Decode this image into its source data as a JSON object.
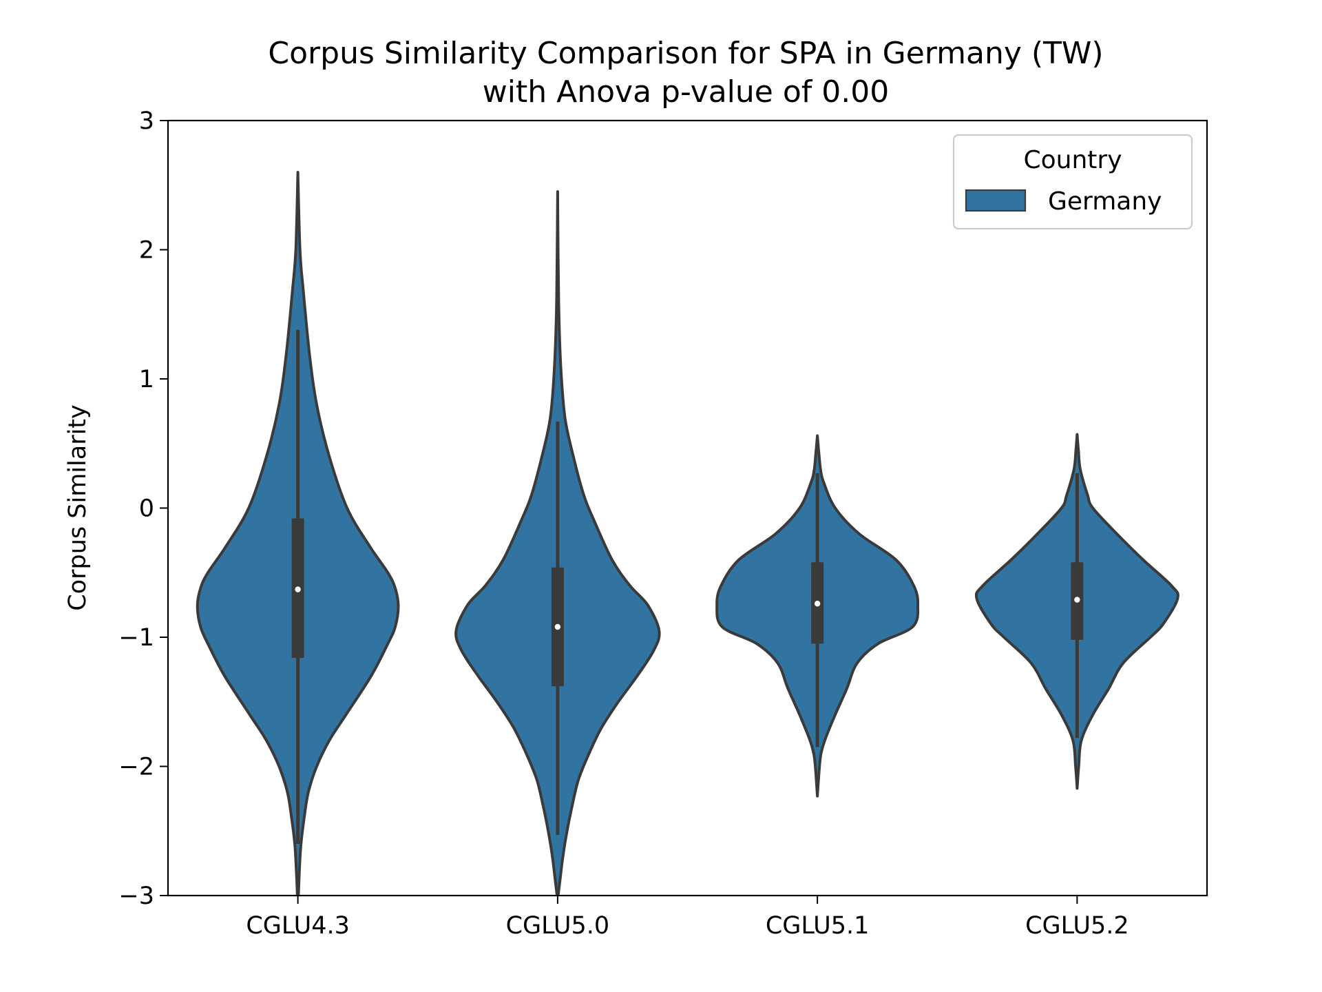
{
  "chart_data": {
    "type": "violin",
    "title_line1": "Corpus Similarity Comparison for SPA in Germany (TW)",
    "title_line2": "with Anova p-value of 0.00",
    "xlabel": "",
    "ylabel": "Corpus Similarity",
    "ylim": [
      -3,
      3
    ],
    "yticks": [
      3,
      2,
      1,
      0,
      -1,
      -2,
      -3
    ],
    "ytick_labels": [
      "3",
      "2",
      "1",
      "0",
      "−1",
      "−2",
      "−3"
    ],
    "categories": [
      "CGLU4.3",
      "CGLU5.0",
      "CGLU5.1",
      "CGLU5.2"
    ],
    "legend": {
      "title": "Country",
      "entries": [
        {
          "label": "Germany",
          "color": "#3274a1"
        }
      ],
      "placement": "upper right"
    },
    "series": [
      {
        "name": "CGLU4.3",
        "range": [
          -3.0,
          2.6
        ],
        "q1": -1.16,
        "median": -0.63,
        "q3": -0.08,
        "whisker": [
          -2.6,
          1.38
        ],
        "density": [
          [
            2.6,
            0.0
          ],
          [
            2.0,
            0.02
          ],
          [
            1.7,
            0.05
          ],
          [
            1.2,
            0.11
          ],
          [
            0.8,
            0.18
          ],
          [
            0.4,
            0.3
          ],
          [
            0.0,
            0.47
          ],
          [
            -0.3,
            0.69
          ],
          [
            -0.5,
            0.86
          ],
          [
            -0.62,
            0.93
          ],
          [
            -0.76,
            0.96
          ],
          [
            -0.92,
            0.93
          ],
          [
            -1.05,
            0.86
          ],
          [
            -1.3,
            0.7
          ],
          [
            -1.6,
            0.46
          ],
          [
            -1.8,
            0.3
          ],
          [
            -2.0,
            0.18
          ],
          [
            -2.2,
            0.1
          ],
          [
            -2.4,
            0.06
          ],
          [
            -2.6,
            0.03
          ],
          [
            -2.8,
            0.015
          ],
          [
            -3.0,
            0.005
          ]
        ]
      },
      {
        "name": "CGLU5.0",
        "range": [
          -3.0,
          2.45
        ],
        "q1": -1.38,
        "median": -0.92,
        "q3": -0.46,
        "whisker": [
          -2.53,
          0.67
        ],
        "density": [
          [
            2.45,
            0.0
          ],
          [
            1.6,
            0.01
          ],
          [
            1.1,
            0.03
          ],
          [
            0.7,
            0.07
          ],
          [
            0.4,
            0.15
          ],
          [
            0.1,
            0.25
          ],
          [
            -0.1,
            0.35
          ],
          [
            -0.4,
            0.52
          ],
          [
            -0.6,
            0.69
          ],
          [
            -0.75,
            0.86
          ],
          [
            -0.95,
            0.97
          ],
          [
            -1.1,
            0.92
          ],
          [
            -1.3,
            0.76
          ],
          [
            -1.5,
            0.58
          ],
          [
            -1.7,
            0.42
          ],
          [
            -1.9,
            0.3
          ],
          [
            -2.1,
            0.2
          ],
          [
            -2.3,
            0.14
          ],
          [
            -2.5,
            0.09
          ],
          [
            -2.7,
            0.05
          ],
          [
            -2.9,
            0.02
          ],
          [
            -3.0,
            0.005
          ]
        ]
      },
      {
        "name": "CGLU5.1",
        "range": [
          -2.23,
          0.56
        ],
        "q1": -1.05,
        "median": -0.74,
        "q3": -0.42,
        "whisker": [
          -1.85,
          0.27
        ],
        "density": [
          [
            0.56,
            0.0
          ],
          [
            0.45,
            0.012
          ],
          [
            0.3,
            0.03
          ],
          [
            0.2,
            0.06
          ],
          [
            0.0,
            0.17
          ],
          [
            -0.2,
            0.4
          ],
          [
            -0.4,
            0.75
          ],
          [
            -0.6,
            0.92
          ],
          [
            -0.75,
            0.96
          ],
          [
            -0.92,
            0.91
          ],
          [
            -1.05,
            0.58
          ],
          [
            -1.2,
            0.38
          ],
          [
            -1.4,
            0.28
          ],
          [
            -1.6,
            0.17
          ],
          [
            -1.8,
            0.07
          ],
          [
            -1.9,
            0.035
          ],
          [
            -2.0,
            0.02
          ],
          [
            -2.23,
            0.0
          ]
        ]
      },
      {
        "name": "CGLU5.2",
        "range": [
          -2.17,
          0.57
        ],
        "q1": -1.02,
        "median": -0.71,
        "q3": -0.42,
        "whisker": [
          -1.78,
          0.27
        ],
        "density": [
          [
            0.57,
            0.0
          ],
          [
            0.45,
            0.012
          ],
          [
            0.3,
            0.03
          ],
          [
            0.1,
            0.1
          ],
          [
            0.0,
            0.15
          ],
          [
            -0.2,
            0.38
          ],
          [
            -0.4,
            0.63
          ],
          [
            -0.6,
            0.9
          ],
          [
            -0.7,
            0.96
          ],
          [
            -0.9,
            0.82
          ],
          [
            -1.0,
            0.7
          ],
          [
            -1.2,
            0.44
          ],
          [
            -1.4,
            0.3
          ],
          [
            -1.6,
            0.15
          ],
          [
            -1.8,
            0.04
          ],
          [
            -2.0,
            0.015
          ],
          [
            -2.17,
            0.0
          ]
        ]
      }
    ]
  }
}
